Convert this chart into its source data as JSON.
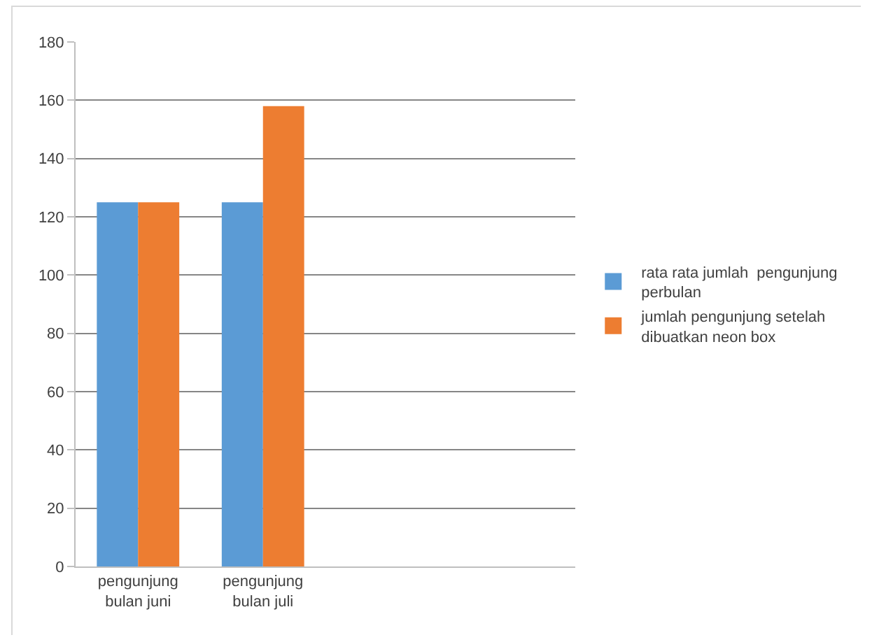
{
  "chart_data": {
    "type": "bar",
    "categories": [
      "pengunjung bulan juni",
      "pengunjung bulan juli",
      null,
      null
    ],
    "series": [
      {
        "name": "rata rata jumlah  pengunjung perbulan",
        "color": "#5b9bd5",
        "values": [
          125,
          125,
          null,
          null
        ]
      },
      {
        "name": "jumlah pengunjung setelah dibuatkan neon box",
        "color": "#ed7d31",
        "values": [
          125,
          158,
          null,
          null
        ]
      }
    ],
    "ylim": [
      0,
      180
    ],
    "yticks": [
      0,
      20,
      40,
      60,
      80,
      100,
      120,
      140,
      160,
      180
    ],
    "grid": "y",
    "legend": "right"
  }
}
